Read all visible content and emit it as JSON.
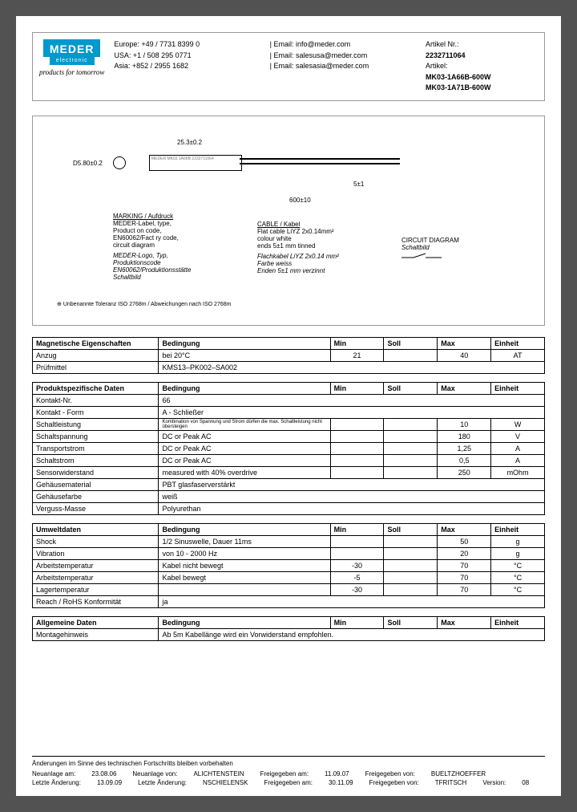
{
  "header": {
    "logo": "MEDER",
    "logo_sub": "electronic",
    "tagline": "products for tomorrow",
    "contacts": {
      "europe_phone": "Europe: +49 / 7731 8399 0",
      "usa_phone": "USA: +1 / 508 295 0771",
      "asia_phone": "Asia: +852 / 2955 1682",
      "email1": "| Email: info@meder.com",
      "email2": "| Email: salesusa@meder.com",
      "email3": "| Email: salesasia@meder.com"
    },
    "article": {
      "artikel_nr_label": "Artikel Nr.:",
      "artikel_nr": "2232711064",
      "artikel_label": "Artikel:",
      "artikel1": "MK03-1A66B-600W",
      "artikel2": "MK03-1A71B-600W"
    }
  },
  "diagram": {
    "dim1": "25.3±0.2",
    "dim2": "D5.80±0.2",
    "dim3": "5±1",
    "dim4": "600±10",
    "marking_title": "MARKING / Aufdruck",
    "marking_lines": [
      "MEDER-Label, type,",
      "Product on code,",
      "EN60062/Fact ry code,",
      "circuit diagram"
    ],
    "marking_lines_it": [
      "MEDER-Logo, Typ,",
      "Produktionscode",
      "EN60062/Produktionsstätte",
      "Schaltbild"
    ],
    "cable_title": "CABLE / Kabel",
    "cable_lines": [
      "Flat cable LiYZ 2x0.14mm²",
      "colour white",
      "ends 5±1 mm tinned"
    ],
    "cable_lines_it": [
      "Flachkabel LiYZ 2x0.14 mm²",
      "Farbe weiss",
      "Enden 5±1 mm verzinnt"
    ],
    "circuit_title": "CIRCUIT DIAGRAM",
    "circuit_sub": "Schaltbild",
    "rect_label": "MEDER MK03 1A66B 2232711064",
    "tolerance": "Unbenannte Toleranz ISO 2768m / Abweichungen nach ISO 2768m"
  },
  "tables": {
    "headers": {
      "param": "",
      "bedingung": "Bedingung",
      "min": "Min",
      "soll": "Soll",
      "max": "Max",
      "einheit": "Einheit"
    },
    "t1": {
      "title": "Magnetische Eigenschaften",
      "rows": [
        {
          "p": "Anzug",
          "c": "bei 20°C",
          "min": "21",
          "soll": "",
          "max": "40",
          "u": "AT"
        },
        {
          "p": "Prüfmittel",
          "span": "KMS13–PK002–SA002"
        }
      ]
    },
    "t2": {
      "title": "Produktspezifische Daten",
      "rows": [
        {
          "p": "Kontakt-Nr.",
          "span": "66"
        },
        {
          "p": "Kontakt - Form",
          "span": "A - Schließer"
        },
        {
          "p": "Schaltleistung",
          "c": "Kombination von Spannung und Strom dürfen die max. Schaltleistung nicht übersteigen",
          "min": "",
          "soll": "",
          "max": "10",
          "u": "W"
        },
        {
          "p": "Schaltspannung",
          "c": "DC or Peak AC",
          "min": "",
          "soll": "",
          "max": "180",
          "u": "V"
        },
        {
          "p": "Transportstrom",
          "c": "DC or Peak AC",
          "min": "",
          "soll": "",
          "max": "1,25",
          "u": "A"
        },
        {
          "p": "Schaltstrom",
          "c": "DC or Peak AC",
          "min": "",
          "soll": "",
          "max": "0,5",
          "u": "A"
        },
        {
          "p": "Sensorwiderstand",
          "c": "measured with 40% overdrive",
          "min": "",
          "soll": "",
          "max": "250",
          "u": "mOhm"
        },
        {
          "p": "Gehäusematerial",
          "span": "PBT glasfaserverstärkt"
        },
        {
          "p": "Gehäusefarbe",
          "span": "weiß"
        },
        {
          "p": "Verguss-Masse",
          "span": "Polyurethan"
        }
      ]
    },
    "t3": {
      "title": "Umweltdaten",
      "rows": [
        {
          "p": "Shock",
          "c": "1/2 Sinuswelle, Dauer 11ms",
          "min": "",
          "soll": "",
          "max": "50",
          "u": "g"
        },
        {
          "p": "Vibration",
          "c": "von 10 - 2000 Hz",
          "min": "",
          "soll": "",
          "max": "20",
          "u": "g"
        },
        {
          "p": "Arbeitstemperatur",
          "c": "Kabel nicht bewegt",
          "min": "-30",
          "soll": "",
          "max": "70",
          "u": "°C"
        },
        {
          "p": "Arbeitstemperatur",
          "c": "Kabel bewegt",
          "min": "-5",
          "soll": "",
          "max": "70",
          "u": "°C"
        },
        {
          "p": "Lagertemperatur",
          "c": "",
          "min": "-30",
          "soll": "",
          "max": "70",
          "u": "°C"
        },
        {
          "p": "Reach / RoHS Konformität",
          "span": "ja"
        }
      ]
    },
    "t4": {
      "title": "Allgemeine Daten",
      "rows": [
        {
          "p": "Montagehinweis",
          "span": "Ab 5m Kabellänge wird ein Vorwiderstand empfohlen."
        }
      ]
    }
  },
  "footer": {
    "note": "Änderungen im Sinne des technischen Fortschritts bleiben vorbehalten",
    "r1": {
      "l1": "Neuanlage am:",
      "v1": "23.08.06",
      "l2": "Neuanlage von:",
      "v2": "ALICHTENSTEIN",
      "l3": "Freigegeben am:",
      "v3": "11.09.07",
      "l4": "Freigegeben von:",
      "v4": "BUELTZHOEFFER"
    },
    "r2": {
      "l1": "Letzte Änderung:",
      "v1": "13.09.09",
      "l2": "Letzte Änderung:",
      "v2": "NSCHIELENSK",
      "l3": "Freigegeben am:",
      "v3": "30.11.09",
      "l4": "Freigegeben von:",
      "v4": "TFRITSCH",
      "l5": "Version:",
      "v5": "08"
    }
  }
}
